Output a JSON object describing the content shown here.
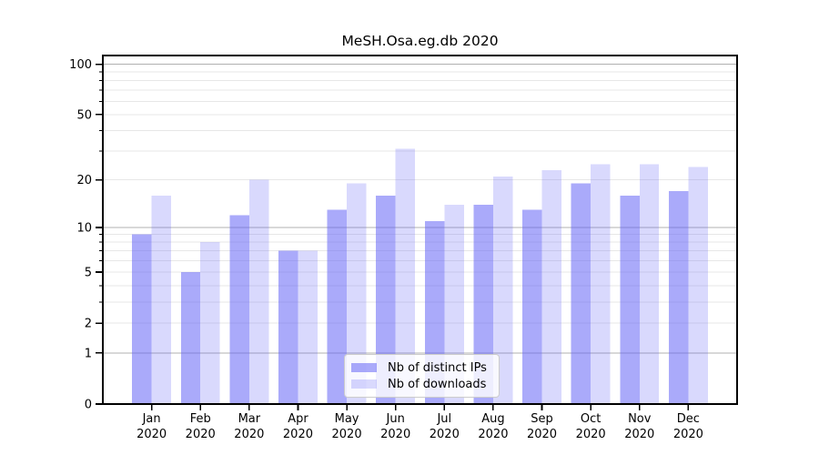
{
  "figure": {
    "title": "MeSH.Osa.eg.db 2020"
  },
  "chart_data": {
    "type": "bar",
    "title": "MeSH.Osa.eg.db 2020",
    "y_scale": "log10(1+x)",
    "grid": true,
    "categories": [
      "Jan",
      "Feb",
      "Mar",
      "Apr",
      "May",
      "Jun",
      "Jul",
      "Aug",
      "Sep",
      "Oct",
      "Nov",
      "Dec"
    ],
    "x_tick_year": "2020",
    "series": [
      {
        "name": "Nb of distinct IPs",
        "color": "rgba(100,100,245,0.55)",
        "values": [
          9,
          5,
          12,
          7,
          13,
          16,
          11,
          14,
          13,
          19,
          16,
          17
        ]
      },
      {
        "name": "Nb of downloads",
        "color": "rgba(100,100,245,0.245)",
        "values": [
          16,
          8,
          20,
          7,
          19,
          31,
          14,
          21,
          23,
          25,
          25,
          24
        ]
      }
    ],
    "y_ticks_labeled": [
      0,
      1,
      2,
      5,
      10,
      20,
      50,
      100
    ],
    "y_ticks_minor": [
      3,
      4,
      6,
      7,
      8,
      9,
      30,
      40,
      60,
      70,
      80,
      90
    ],
    "y_grid_major": [
      1,
      10,
      100
    ],
    "y_grid_minor": [
      2,
      3,
      4,
      5,
      6,
      7,
      8,
      9,
      20,
      30,
      40,
      50,
      60,
      70,
      80,
      90
    ],
    "ylim": [
      0,
      112.7
    ],
    "legend_position": "inside-bottom-center",
    "colors": {
      "grid_major": "#b0b0b0",
      "grid_minor": "#e7e7e7",
      "spine": "#000000"
    }
  }
}
